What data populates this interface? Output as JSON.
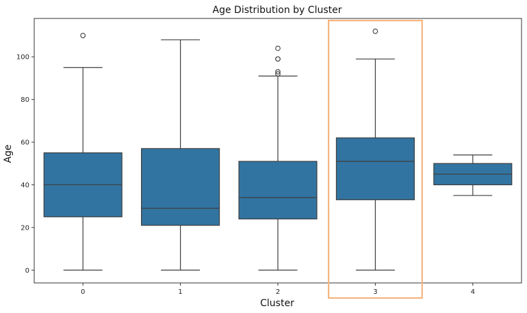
{
  "chart_data": {
    "type": "box",
    "title": "Age Distribution by Cluster",
    "xlabel": "Cluster",
    "ylabel": "Age",
    "ylim": [
      -6,
      118
    ],
    "yticks": [
      0,
      20,
      40,
      60,
      80,
      100
    ],
    "grid": false,
    "categories": [
      "0",
      "1",
      "2",
      "3",
      "4"
    ],
    "series": [
      {
        "category": "0",
        "whisker_low": 0,
        "q1": 25,
        "median": 40,
        "q3": 55,
        "whisker_high": 95,
        "outliers": [
          110
        ]
      },
      {
        "category": "1",
        "whisker_low": 0,
        "q1": 21,
        "median": 29,
        "q3": 57,
        "whisker_high": 108,
        "outliers": []
      },
      {
        "category": "2",
        "whisker_low": 0,
        "q1": 24,
        "median": 34,
        "q3": 51,
        "whisker_high": 91,
        "outliers": [
          92,
          93,
          99,
          99,
          104
        ]
      },
      {
        "category": "3",
        "whisker_low": 0,
        "q1": 33,
        "median": 51,
        "q3": 62,
        "whisker_high": 99,
        "outliers": [
          112
        ]
      },
      {
        "category": "4",
        "whisker_low": 35,
        "q1": 40,
        "median": 45,
        "q3": 50,
        "whisker_high": 54,
        "outliers": []
      }
    ],
    "highlight_category": "3",
    "colors": {
      "box_fill": "#3274a1",
      "line": "#3d3d3d",
      "highlight": "#f6b47e"
    }
  }
}
